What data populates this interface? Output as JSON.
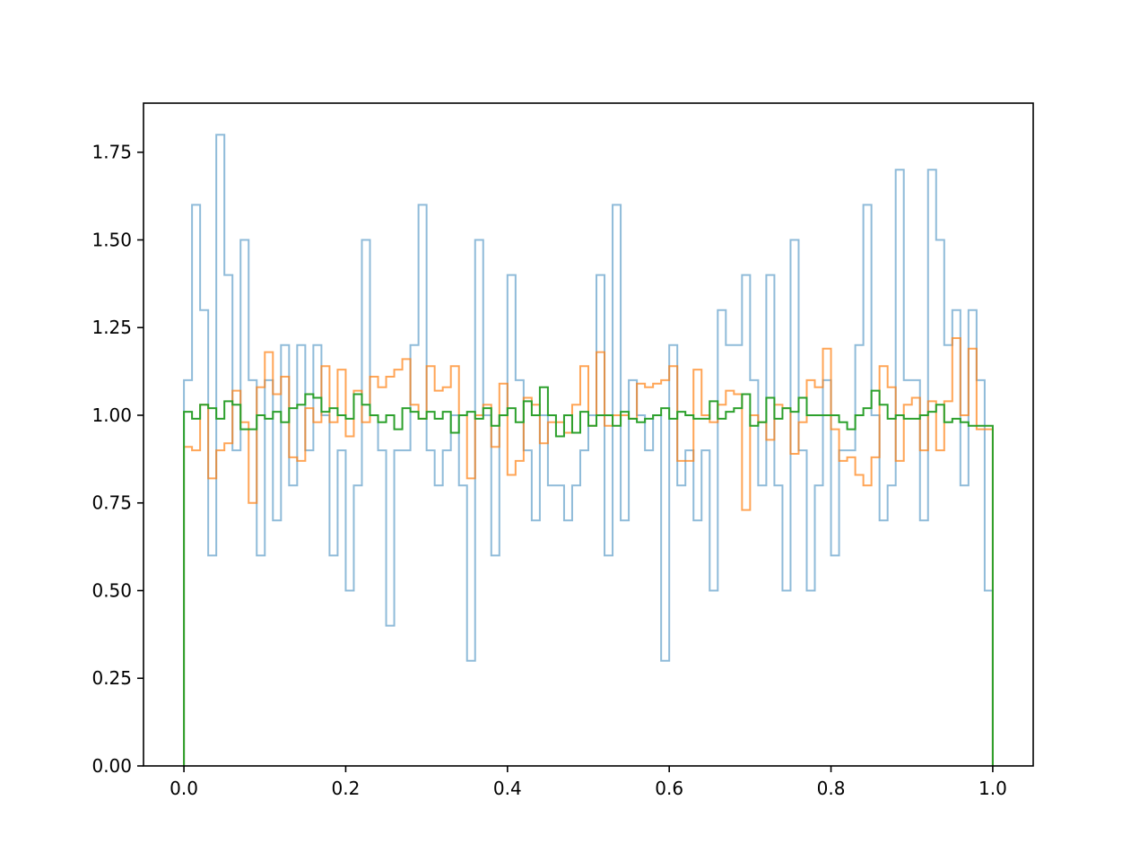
{
  "chart_data": {
    "type": "histogram",
    "histtype": "step",
    "title": "",
    "xlabel": "",
    "ylabel": "",
    "xlim": [
      -0.05,
      1.05
    ],
    "ylim": [
      0,
      1.89
    ],
    "grid": false,
    "legend": "none",
    "bins": 100,
    "bin_range": [
      0,
      1
    ],
    "x_ticks": [
      {
        "value": 0.0,
        "label": "0.0"
      },
      {
        "value": 0.2,
        "label": "0.2"
      },
      {
        "value": 0.4,
        "label": "0.4"
      },
      {
        "value": 0.6,
        "label": "0.6"
      },
      {
        "value": 0.8,
        "label": "0.8"
      },
      {
        "value": 1.0,
        "label": "1.0"
      }
    ],
    "y_ticks": [
      {
        "value": 0.0,
        "label": "0.00"
      },
      {
        "value": 0.25,
        "label": "0.25"
      },
      {
        "value": 0.5,
        "label": "0.50"
      },
      {
        "value": 0.75,
        "label": "0.75"
      },
      {
        "value": 1.0,
        "label": "1.00"
      },
      {
        "value": 1.25,
        "label": "1.25"
      },
      {
        "value": 1.5,
        "label": "1.50"
      },
      {
        "value": 1.75,
        "label": "1.75"
      }
    ],
    "series": [
      {
        "color": "#1f77b4",
        "opacity": 0.5,
        "values": [
          1.1,
          1.6,
          1.3,
          0.6,
          1.8,
          1.4,
          0.9,
          1.5,
          1.1,
          0.6,
          1.1,
          0.7,
          1.2,
          0.8,
          1.2,
          0.9,
          1.2,
          1.0,
          0.6,
          0.9,
          0.5,
          0.8,
          1.5,
          1.0,
          0.9,
          0.4,
          0.9,
          0.9,
          1.2,
          1.6,
          0.9,
          0.8,
          0.9,
          1.0,
          0.8,
          0.3,
          1.5,
          1.0,
          0.6,
          1.0,
          1.4,
          1.1,
          0.9,
          0.7,
          1.0,
          0.8,
          0.8,
          0.7,
          0.8,
          0.9,
          1.0,
          1.4,
          0.6,
          1.6,
          0.7,
          1.1,
          1.0,
          0.9,
          1.0,
          0.3,
          1.2,
          0.8,
          0.9,
          0.7,
          0.9,
          0.5,
          1.3,
          1.2,
          1.2,
          1.4,
          1.1,
          0.8,
          1.4,
          0.8,
          0.5,
          1.5,
          0.9,
          0.5,
          0.8,
          1.1,
          0.6,
          0.9,
          0.9,
          1.2,
          1.6,
          1.0,
          0.7,
          0.8,
          1.7,
          1.1,
          1.1,
          0.7,
          1.7,
          1.5,
          1.2,
          1.3,
          0.8,
          1.3,
          1.1,
          0.5
        ]
      },
      {
        "color": "#ff7f0e",
        "opacity": 0.7,
        "values": [
          0.91,
          0.9,
          1.03,
          0.82,
          0.9,
          0.92,
          1.07,
          0.98,
          0.75,
          1.08,
          1.18,
          1.06,
          1.11,
          0.88,
          0.87,
          1.02,
          0.98,
          1.14,
          0.98,
          1.13,
          0.94,
          1.07,
          0.98,
          1.11,
          1.08,
          1.11,
          1.13,
          1.16,
          1.03,
          0.99,
          1.14,
          1.07,
          1.08,
          1.14,
          1.0,
          0.82,
          1.0,
          1.03,
          0.91,
          1.09,
          0.83,
          0.87,
          1.05,
          1.03,
          0.92,
          0.98,
          0.98,
          0.95,
          1.03,
          1.14,
          0.97,
          1.18,
          0.97,
          1.0,
          1.0,
          0.99,
          1.09,
          1.08,
          1.09,
          1.1,
          1.14,
          0.87,
          0.87,
          1.13,
          1.0,
          0.98,
          1.03,
          1.07,
          1.06,
          0.73,
          1.0,
          0.98,
          0.93,
          1.03,
          1.02,
          0.89,
          0.98,
          1.1,
          1.08,
          1.19,
          0.96,
          0.87,
          0.88,
          0.83,
          0.8,
          0.88,
          1.14,
          1.08,
          0.87,
          1.03,
          1.05,
          0.9,
          1.04,
          0.9,
          1.04,
          1.22,
          1.0,
          1.19,
          0.96,
          0.96
        ]
      },
      {
        "color": "#2ca02c",
        "opacity": 1.0,
        "values": [
          1.01,
          0.99,
          1.03,
          1.02,
          0.99,
          1.04,
          1.03,
          0.96,
          0.96,
          1.0,
          0.99,
          1.01,
          0.98,
          1.02,
          1.03,
          1.06,
          1.05,
          1.01,
          1.02,
          1.0,
          0.99,
          1.06,
          1.03,
          1.0,
          0.98,
          1.0,
          0.96,
          1.02,
          1.01,
          0.99,
          1.01,
          0.99,
          1.01,
          0.95,
          1.0,
          1.01,
          0.99,
          1.02,
          0.97,
          1.0,
          1.02,
          0.98,
          1.04,
          1.0,
          1.08,
          1.0,
          0.94,
          1.0,
          0.95,
          1.01,
          0.97,
          1.0,
          1.0,
          0.97,
          1.01,
          0.99,
          0.98,
          0.99,
          1.0,
          1.02,
          0.99,
          1.01,
          1.0,
          0.99,
          0.99,
          1.04,
          0.99,
          1.01,
          1.02,
          1.06,
          0.97,
          0.98,
          1.05,
          0.99,
          1.02,
          1.01,
          1.05,
          1.0,
          1.0,
          1.0,
          1.0,
          0.98,
          0.96,
          1.0,
          1.02,
          1.07,
          1.03,
          0.99,
          1.0,
          0.99,
          0.99,
          1.0,
          1.01,
          1.03,
          0.98,
          0.99,
          0.98,
          0.97,
          0.97,
          0.97
        ]
      }
    ]
  }
}
